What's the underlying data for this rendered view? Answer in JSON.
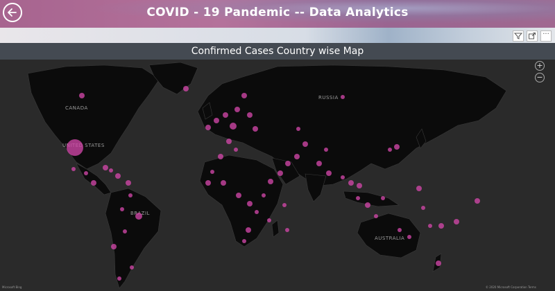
{
  "header": {
    "title": "COVID - 19 Pandemic -- Data Analytics",
    "back_icon": "back-arrow-icon"
  },
  "toolbar": {
    "icons": [
      "filter-icon",
      "focus-mode-icon",
      "more-options-icon"
    ],
    "more_label": "···"
  },
  "visual": {
    "title": "Confirmed Cases Country wise Map"
  },
  "map": {
    "zoom_in": "+",
    "zoom_out": "−",
    "labels": {
      "canada": "CANADA",
      "united_states": "UNITED STATES",
      "russia": "RUSSIA",
      "brazil": "BRAZIL",
      "australia": "AUSTRALIA"
    },
    "bubble_color": "#d146a8",
    "attribution": "© 2020 Microsoft Corporation  Terms",
    "provider": "Microsoft Bing"
  }
}
